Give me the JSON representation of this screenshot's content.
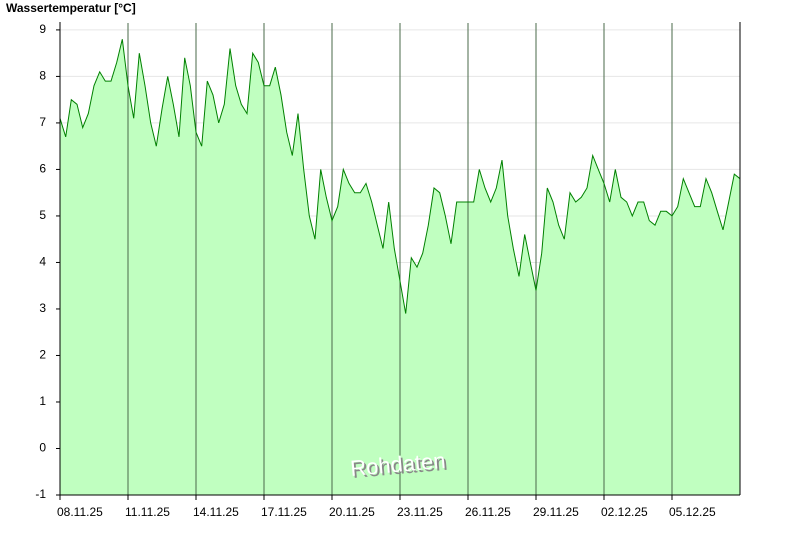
{
  "chart_data": {
    "type": "area",
    "title": "Wassertemperatur [°C]",
    "annotation": "Rohdaten",
    "categories": [
      "08.11.25",
      null,
      null,
      null,
      null,
      null,
      null,
      null,
      null,
      null,
      null,
      null,
      "11.11.25",
      null,
      null,
      null,
      null,
      null,
      null,
      null,
      null,
      null,
      null,
      null,
      "14.11.25",
      null,
      null,
      null,
      null,
      null,
      null,
      null,
      null,
      null,
      null,
      null,
      "17.11.25",
      null,
      null,
      null,
      null,
      null,
      null,
      null,
      null,
      null,
      null,
      null,
      "20.11.25",
      null,
      null,
      null,
      null,
      null,
      null,
      null,
      null,
      null,
      null,
      null,
      "23.11.25",
      null,
      null,
      null,
      null,
      null,
      null,
      null,
      null,
      null,
      null,
      null,
      "26.11.25",
      null,
      null,
      null,
      null,
      null,
      null,
      null,
      null,
      null,
      null,
      null,
      "29.11.25",
      null,
      null,
      null,
      null,
      null,
      null,
      null,
      null,
      null,
      null,
      null,
      "02.12.25",
      null,
      null,
      null,
      null,
      null,
      null,
      null,
      null,
      null,
      null,
      null,
      "05.12.25",
      null,
      null,
      null,
      null,
      null,
      null,
      null,
      null,
      null,
      null,
      null,
      null
    ],
    "series": [
      {
        "name": "Wassertemperatur",
        "color": "#008000",
        "fill": "#c0ffc0",
        "values": [
          7.1,
          6.7,
          7.5,
          7.4,
          6.9,
          7.2,
          7.8,
          8.1,
          7.9,
          7.9,
          8.3,
          8.8,
          7.8,
          7.1,
          8.5,
          7.8,
          7.0,
          6.5,
          7.3,
          8.0,
          7.4,
          6.7,
          8.4,
          7.8,
          6.8,
          6.5,
          7.9,
          7.6,
          7.0,
          7.4,
          8.6,
          7.8,
          7.4,
          7.2,
          8.5,
          8.3,
          7.8,
          7.8,
          8.2,
          7.6,
          6.8,
          6.3,
          7.2,
          6.0,
          5.0,
          4.5,
          6.0,
          5.4,
          4.9,
          5.2,
          6.0,
          5.7,
          5.5,
          5.5,
          5.7,
          5.3,
          4.8,
          4.3,
          5.3,
          4.3,
          3.6,
          2.9,
          4.1,
          3.9,
          4.2,
          4.8,
          5.6,
          5.5,
          5.0,
          4.4,
          5.3,
          5.3,
          5.3,
          5.3,
          6.0,
          5.6,
          5.3,
          5.6,
          6.2,
          5.0,
          4.3,
          3.7,
          4.6,
          4.0,
          3.4,
          4.2,
          5.6,
          5.3,
          4.8,
          4.5,
          5.5,
          5.3,
          5.4,
          5.6,
          6.3,
          6.0,
          5.7,
          5.3,
          6.0,
          5.4,
          5.3,
          5.0,
          5.3,
          5.3,
          4.9,
          4.8,
          5.1,
          5.1,
          5.0,
          5.2,
          5.8,
          5.5,
          5.2,
          5.2,
          5.8,
          5.5,
          5.1,
          4.7,
          5.3,
          5.9,
          5.8
        ]
      }
    ],
    "ylim": [
      -1,
      9.17
    ],
    "yticks": [
      -1,
      0,
      1,
      2,
      3,
      4,
      5,
      6,
      7,
      8,
      9
    ],
    "grid": true
  }
}
